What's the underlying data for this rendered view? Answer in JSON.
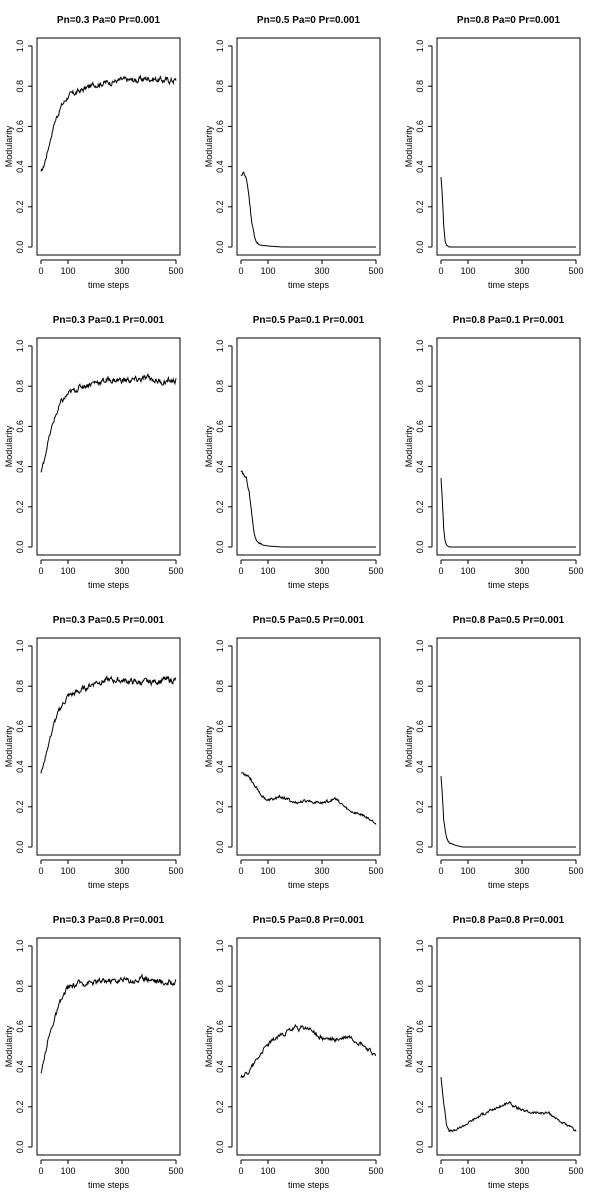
{
  "chart_data": [
    {
      "type": "line",
      "title": "Pn=0.3 Pa=0 Pr=0.001",
      "xlabel": "time steps",
      "ylabel": "Modularity",
      "xlim": [
        0,
        500
      ],
      "ylim": [
        0,
        1
      ],
      "xticks": [
        0,
        100,
        300,
        500
      ],
      "yticks": [
        0.0,
        0.2,
        0.4,
        0.6,
        0.8,
        1.0
      ],
      "series": [
        {
          "x": [
            0,
            10,
            25,
            50,
            75,
            100,
            150,
            200,
            250,
            300,
            350,
            400,
            450,
            500
          ],
          "y": [
            0.37,
            0.4,
            0.48,
            0.62,
            0.7,
            0.75,
            0.78,
            0.81,
            0.82,
            0.83,
            0.83,
            0.84,
            0.83,
            0.83
          ]
        }
      ]
    },
    {
      "type": "line",
      "title": "Pn=0.5 Pa=0 Pr=0.001",
      "xlabel": "time steps",
      "ylabel": "Modularity",
      "xlim": [
        0,
        500
      ],
      "ylim": [
        0,
        1
      ],
      "xticks": [
        0,
        100,
        300,
        500
      ],
      "yticks": [
        0.0,
        0.2,
        0.4,
        0.6,
        0.8,
        1.0
      ],
      "series": [
        {
          "x": [
            0,
            10,
            20,
            30,
            40,
            50,
            60,
            70,
            100,
            150,
            200,
            300,
            400,
            500
          ],
          "y": [
            0.36,
            0.37,
            0.33,
            0.25,
            0.12,
            0.05,
            0.02,
            0.01,
            0.005,
            0.0,
            0.0,
            0.0,
            0.0,
            0.0
          ]
        }
      ]
    },
    {
      "type": "line",
      "title": "Pn=0.8 Pa=0 Pr=0.001",
      "xlabel": "time steps",
      "ylabel": "Modularity",
      "xlim": [
        0,
        500
      ],
      "ylim": [
        0,
        1
      ],
      "xticks": [
        0,
        100,
        300,
        500
      ],
      "yticks": [
        0.0,
        0.2,
        0.4,
        0.6,
        0.8,
        1.0
      ],
      "series": [
        {
          "x": [
            0,
            5,
            10,
            15,
            20,
            30,
            50,
            100,
            200,
            300,
            400,
            500
          ],
          "y": [
            0.35,
            0.25,
            0.1,
            0.03,
            0.01,
            0.0,
            0.0,
            0.0,
            0.0,
            0.0,
            0.0,
            0.0
          ]
        }
      ]
    },
    {
      "type": "line",
      "title": "Pn=0.3 Pa=0.1 Pr=0.001",
      "xlabel": "time steps",
      "ylabel": "Modularity",
      "xlim": [
        0,
        500
      ],
      "ylim": [
        0,
        1
      ],
      "xticks": [
        0,
        100,
        300,
        500
      ],
      "yticks": [
        0.0,
        0.2,
        0.4,
        0.6,
        0.8,
        1.0
      ],
      "series": [
        {
          "x": [
            0,
            10,
            25,
            50,
            75,
            100,
            150,
            200,
            250,
            300,
            350,
            400,
            450,
            500
          ],
          "y": [
            0.37,
            0.42,
            0.52,
            0.64,
            0.72,
            0.76,
            0.8,
            0.82,
            0.83,
            0.83,
            0.83,
            0.84,
            0.82,
            0.83
          ]
        }
      ]
    },
    {
      "type": "line",
      "title": "Pn=0.5 Pa=0.1 Pr=0.001",
      "xlabel": "time steps",
      "ylabel": "Modularity",
      "xlim": [
        0,
        500
      ],
      "ylim": [
        0,
        1
      ],
      "xticks": [
        0,
        100,
        300,
        500
      ],
      "yticks": [
        0.0,
        0.2,
        0.4,
        0.6,
        0.8,
        1.0
      ],
      "series": [
        {
          "x": [
            0,
            10,
            20,
            30,
            40,
            50,
            60,
            80,
            100,
            150,
            200,
            300,
            400,
            500
          ],
          "y": [
            0.37,
            0.36,
            0.34,
            0.28,
            0.16,
            0.06,
            0.03,
            0.01,
            0.005,
            0.0,
            0.0,
            0.0,
            0.0,
            0.0
          ]
        }
      ]
    },
    {
      "type": "line",
      "title": "Pn=0.8 Pa=0.1 Pr=0.001",
      "xlabel": "time steps",
      "ylabel": "Modularity",
      "xlim": [
        0,
        500
      ],
      "ylim": [
        0,
        1
      ],
      "xticks": [
        0,
        100,
        300,
        500
      ],
      "yticks": [
        0.0,
        0.2,
        0.4,
        0.6,
        0.8,
        1.0
      ],
      "series": [
        {
          "x": [
            0,
            5,
            10,
            15,
            20,
            30,
            50,
            100,
            200,
            300,
            400,
            500
          ],
          "y": [
            0.35,
            0.24,
            0.09,
            0.03,
            0.01,
            0.0,
            0.0,
            0.0,
            0.0,
            0.0,
            0.0,
            0.0
          ]
        }
      ]
    },
    {
      "type": "line",
      "title": "Pn=0.3 Pa=0.5 Pr=0.001",
      "xlabel": "time steps",
      "ylabel": "Modularity",
      "xlim": [
        0,
        500
      ],
      "ylim": [
        0,
        1
      ],
      "xticks": [
        0,
        100,
        300,
        500
      ],
      "yticks": [
        0.0,
        0.2,
        0.4,
        0.6,
        0.8,
        1.0
      ],
      "series": [
        {
          "x": [
            0,
            10,
            25,
            50,
            75,
            100,
            150,
            200,
            250,
            300,
            350,
            400,
            450,
            500
          ],
          "y": [
            0.37,
            0.41,
            0.5,
            0.62,
            0.7,
            0.75,
            0.78,
            0.82,
            0.83,
            0.83,
            0.82,
            0.82,
            0.83,
            0.83
          ]
        }
      ]
    },
    {
      "type": "line",
      "title": "Pn=0.5 Pa=0.5 Pr=0.001",
      "xlabel": "time steps",
      "ylabel": "Modularity",
      "xlim": [
        0,
        500
      ],
      "ylim": [
        0,
        1
      ],
      "xticks": [
        0,
        100,
        300,
        500
      ],
      "yticks": [
        0.0,
        0.2,
        0.4,
        0.6,
        0.8,
        1.0
      ],
      "series": [
        {
          "x": [
            0,
            25,
            50,
            75,
            100,
            150,
            200,
            250,
            300,
            350,
            400,
            450,
            500
          ],
          "y": [
            0.37,
            0.36,
            0.31,
            0.26,
            0.23,
            0.25,
            0.22,
            0.23,
            0.22,
            0.24,
            0.18,
            0.16,
            0.12
          ]
        }
      ]
    },
    {
      "type": "line",
      "title": "Pn=0.8 Pa=0.5 Pr=0.001",
      "xlabel": "time steps",
      "ylabel": "Modularity",
      "xlim": [
        0,
        500
      ],
      "ylim": [
        0,
        1
      ],
      "xticks": [
        0,
        100,
        300,
        500
      ],
      "yticks": [
        0.0,
        0.2,
        0.4,
        0.6,
        0.8,
        1.0
      ],
      "series": [
        {
          "x": [
            0,
            5,
            10,
            20,
            30,
            50,
            80,
            100,
            200,
            300,
            400,
            500
          ],
          "y": [
            0.35,
            0.25,
            0.13,
            0.05,
            0.02,
            0.01,
            0.0,
            0.0,
            0.0,
            0.0,
            0.0,
            0.0
          ]
        }
      ]
    },
    {
      "type": "line",
      "title": "Pn=0.3 Pa=0.8 Pr=0.001",
      "xlabel": "time steps",
      "ylabel": "Modularity",
      "xlim": [
        0,
        500
      ],
      "ylim": [
        0,
        1
      ],
      "xticks": [
        0,
        100,
        300,
        500
      ],
      "yticks": [
        0.0,
        0.2,
        0.4,
        0.6,
        0.8,
        1.0
      ],
      "series": [
        {
          "x": [
            0,
            10,
            25,
            50,
            75,
            100,
            150,
            200,
            250,
            300,
            350,
            400,
            450,
            500
          ],
          "y": [
            0.36,
            0.42,
            0.53,
            0.64,
            0.73,
            0.79,
            0.82,
            0.82,
            0.83,
            0.83,
            0.83,
            0.84,
            0.82,
            0.82
          ]
        }
      ]
    },
    {
      "type": "line",
      "title": "Pn=0.5 Pa=0.8 Pr=0.001",
      "xlabel": "time steps",
      "ylabel": "Modularity",
      "xlim": [
        0,
        500
      ],
      "ylim": [
        0,
        1
      ],
      "xticks": [
        0,
        100,
        300,
        500
      ],
      "yticks": [
        0.0,
        0.2,
        0.4,
        0.6,
        0.8,
        1.0
      ],
      "series": [
        {
          "x": [
            0,
            25,
            50,
            75,
            100,
            150,
            200,
            250,
            300,
            350,
            400,
            450,
            500
          ],
          "y": [
            0.35,
            0.37,
            0.42,
            0.47,
            0.51,
            0.56,
            0.59,
            0.59,
            0.54,
            0.53,
            0.55,
            0.51,
            0.45
          ]
        }
      ]
    },
    {
      "type": "line",
      "title": "Pn=0.8 Pa=0.8 Pr=0.001",
      "xlabel": "time steps",
      "ylabel": "Modularity",
      "xlim": [
        0,
        500
      ],
      "ylim": [
        0,
        1
      ],
      "xticks": [
        0,
        100,
        300,
        500
      ],
      "yticks": [
        0.0,
        0.2,
        0.4,
        0.6,
        0.8,
        1.0
      ],
      "series": [
        {
          "x": [
            0,
            10,
            20,
            30,
            50,
            75,
            100,
            150,
            200,
            250,
            300,
            350,
            400,
            450,
            500
          ],
          "y": [
            0.35,
            0.22,
            0.12,
            0.08,
            0.08,
            0.1,
            0.12,
            0.16,
            0.19,
            0.22,
            0.18,
            0.17,
            0.17,
            0.12,
            0.08
          ]
        }
      ]
    }
  ]
}
